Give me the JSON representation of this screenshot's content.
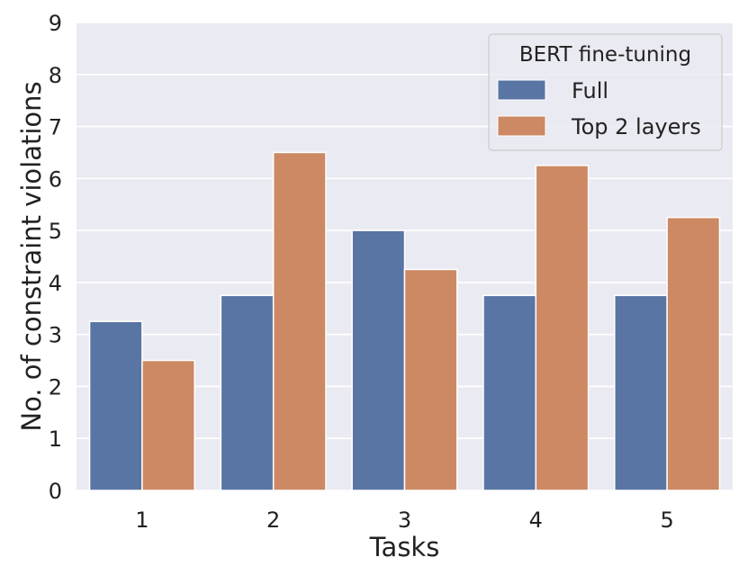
{
  "chart_data": {
    "type": "bar",
    "title": "",
    "xlabel": "Tasks",
    "ylabel": "No. of constraint violations",
    "categories": [
      "1",
      "2",
      "3",
      "4",
      "5"
    ],
    "ylim": [
      0,
      9
    ],
    "yticks": [
      0,
      1,
      2,
      3,
      4,
      5,
      6,
      7,
      8,
      9
    ],
    "grid": true,
    "legend": {
      "title": "BERT fine-tuning",
      "placement": "top-right"
    },
    "series": [
      {
        "name": "Full",
        "color": "#5975a4",
        "values": [
          3.25,
          3.75,
          5.0,
          3.75,
          3.75
        ]
      },
      {
        "name": "Top 2 layers",
        "color": "#cc8963",
        "values": [
          2.5,
          6.5,
          4.25,
          6.25,
          5.25
        ]
      }
    ],
    "plot_background": "#eaeaf2"
  }
}
